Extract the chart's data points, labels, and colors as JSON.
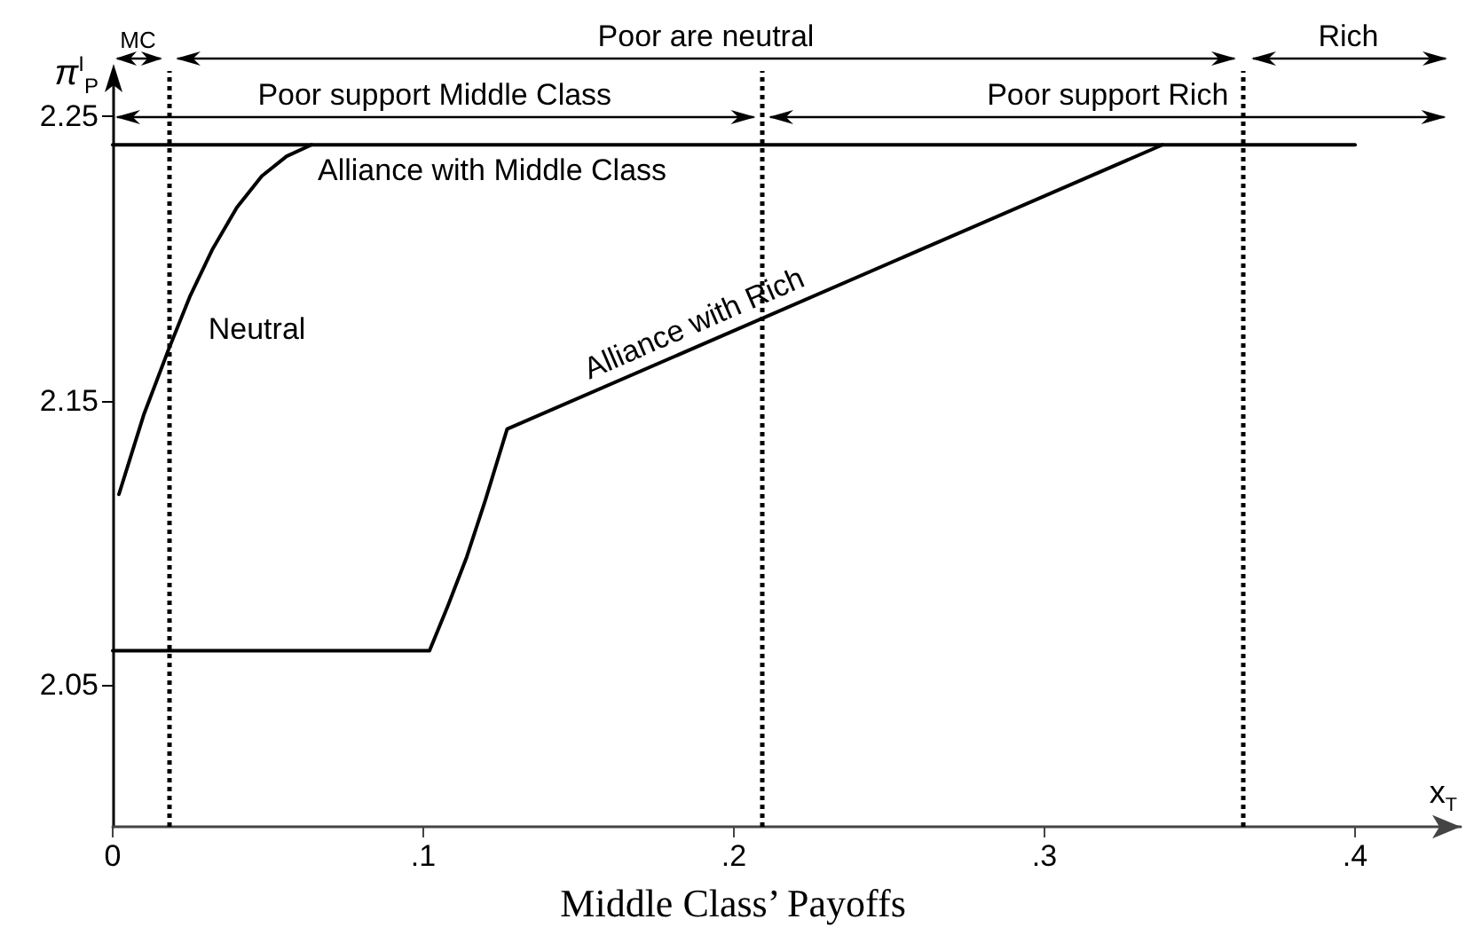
{
  "chart_data": {
    "type": "line",
    "title": "Middle Class’ Payoffs",
    "xlabel": "x$_{T}$",
    "ylabel": "π$^{I}$$_{P}$",
    "series": [
      {
        "color": "#000000",
        "x": [
          0,
          0.4
        ],
        "values": [
          2.24,
          2.24
        ]
      },
      {
        "color": "#000000",
        "x": [
          0.002,
          0.01,
          0.018,
          0.025,
          0.032,
          0.04,
          0.048,
          0.056,
          0.064
        ],
        "values": [
          2.117,
          2.145,
          2.168,
          2.187,
          2.203,
          2.218,
          2.229,
          2.236,
          2.24
        ]
      },
      {
        "color": "#000000",
        "x": [
          0,
          0.102,
          0.108,
          0.114,
          0.12,
          0.127,
          0.338
        ],
        "values": [
          2.062,
          2.062,
          2.078,
          2.095,
          2.115,
          2.14,
          2.24
        ]
      }
    ],
    "annotations": [
      {
        "text": "Alliance with Middle Class",
        "x": 0.066,
        "y": 2.24
      },
      {
        "text": "Neutral",
        "x": 0.0205,
        "y": 2.175
      },
      {
        "text": "Alliance with Rich",
        "x": 0.19,
        "y": 2.17
      },
      "MC",
      "Poor are neutral",
      "Rich",
      "Poor support Middle Class",
      "Poor support Rich"
    ],
    "ref_lines": [
      {
        "axis": "x",
        "value": 0.018,
        "line_style": "dotted"
      },
      {
        "axis": "x",
        "value": 0.209,
        "line_style": "dotted"
      },
      {
        "axis": "x",
        "value": 0.364,
        "line_style": "dotted"
      }
    ],
    "xlim": [
      0,
      0.434
    ],
    "ylim": [
      2.0,
      2.266
    ],
    "xticks": [
      0,
      {
        "value": 0.1,
        "label": ".1"
      },
      {
        "value": 0.2,
        "label": ".2"
      },
      {
        "value": 0.3,
        "label": ".3"
      },
      {
        "value": 0.4,
        "label": ".4"
      }
    ],
    "yticks": [
      2.05,
      2.15,
      2.25
    ],
    "grid": false,
    "marker": "none",
    "line_style": "solid"
  }
}
